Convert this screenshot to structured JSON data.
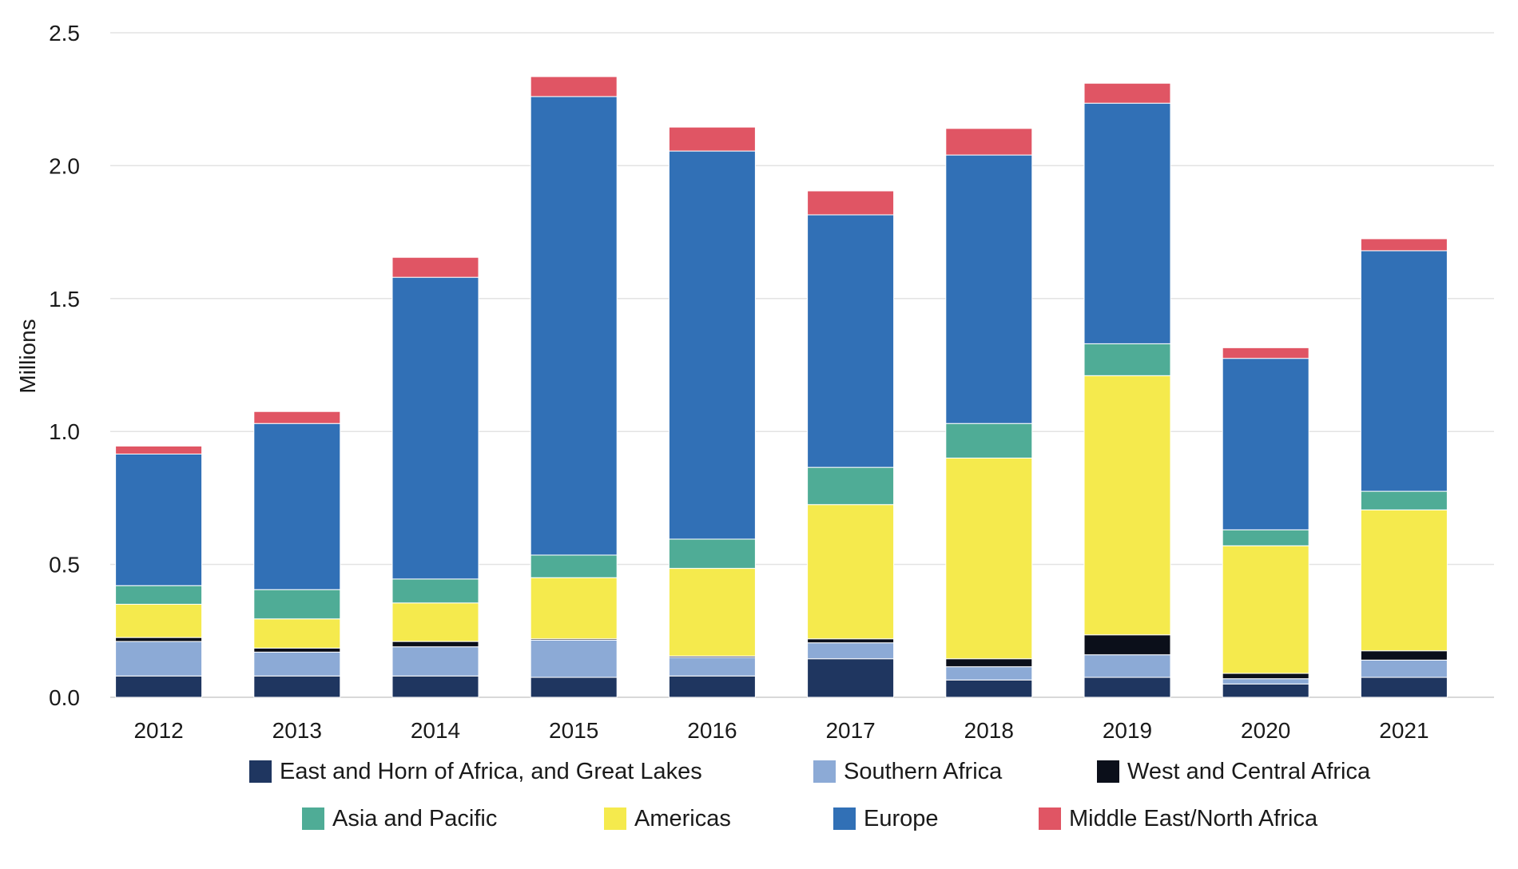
{
  "chart_data": {
    "type": "bar",
    "stacked": true,
    "ylabel": "Millions",
    "ylim": [
      0,
      2.5
    ],
    "yticks": [
      "0.0",
      "0.5",
      "1.0",
      "1.5",
      "2.0",
      "2.5"
    ],
    "grid": true,
    "legend_position": "bottom",
    "categories": [
      "2012",
      "2013",
      "2014",
      "2015",
      "2016",
      "2017",
      "2018",
      "2019",
      "2020",
      "2021"
    ],
    "series": [
      {
        "name": "East and Horn of Africa, and Great Lakes",
        "color": "#1f3660",
        "values": [
          0.08,
          0.08,
          0.08,
          0.075,
          0.08,
          0.145,
          0.065,
          0.075,
          0.05,
          0.075
        ]
      },
      {
        "name": "Southern Africa",
        "color": "#8caad6",
        "values": [
          0.13,
          0.09,
          0.11,
          0.14,
          0.07,
          0.06,
          0.05,
          0.085,
          0.02,
          0.065
        ]
      },
      {
        "name": "West and Central Africa",
        "color": "#0b0f1a",
        "values": [
          0.015,
          0.015,
          0.02,
          0.005,
          0.005,
          0.015,
          0.03,
          0.075,
          0.02,
          0.035
        ]
      },
      {
        "name": "Americas",
        "color": "#f5ea4d",
        "values": [
          0.125,
          0.11,
          0.145,
          0.23,
          0.33,
          0.505,
          0.755,
          0.975,
          0.48,
          0.53
        ]
      },
      {
        "name": "Asia and Pacific",
        "color": "#4fac96",
        "values": [
          0.07,
          0.11,
          0.09,
          0.085,
          0.11,
          0.14,
          0.13,
          0.12,
          0.06,
          0.07
        ]
      },
      {
        "name": "Europe",
        "color": "#3170b6",
        "values": [
          0.495,
          0.625,
          1.135,
          1.725,
          1.46,
          0.95,
          1.01,
          0.905,
          0.645,
          0.905
        ]
      },
      {
        "name": "Middle East/North Africa",
        "color": "#e05564",
        "values": [
          0.03,
          0.045,
          0.075,
          0.075,
          0.09,
          0.09,
          0.1,
          0.075,
          0.04,
          0.045
        ]
      }
    ]
  },
  "legend": {
    "order": [
      0,
      1,
      2,
      4,
      3,
      5,
      6
    ]
  }
}
